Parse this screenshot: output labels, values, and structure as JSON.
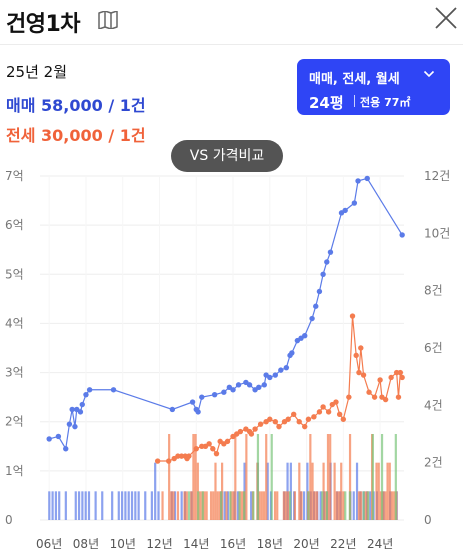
{
  "header": {
    "title": "건영1차",
    "icons": {
      "map": "map-book-icon",
      "close": "close-icon"
    }
  },
  "summary": {
    "date": "25년 2월",
    "sale": "매매 58,000 / 1건",
    "rent": "전세 30,000 / 1건"
  },
  "area_select": {
    "types": "매매, 전세, 월세",
    "pyeong": "24평",
    "exclusive": "전용 77㎡"
  },
  "compare_button": "VS 가격비교",
  "colors": {
    "sale": "#5b7be8",
    "rent": "#f47c4f",
    "monthly": "#7bc47b",
    "accent": "#2f45f5"
  },
  "chart_data": {
    "type": "line",
    "x_unit": "year",
    "xlim": [
      2005.5,
      2025.3
    ],
    "x_ticks": [
      {
        "value": 2006,
        "label": "06년"
      },
      {
        "value": 2008,
        "label": "08년"
      },
      {
        "value": 2010,
        "label": "10년"
      },
      {
        "value": 2012,
        "label": "12년"
      },
      {
        "value": 2014,
        "label": "14년"
      },
      {
        "value": 2016,
        "label": "16년"
      },
      {
        "value": 2018,
        "label": "18년"
      },
      {
        "value": 2020,
        "label": "20년"
      },
      {
        "value": 2022,
        "label": "22년"
      },
      {
        "value": 2024,
        "label": "24년"
      }
    ],
    "y_left": {
      "lim": [
        0,
        7
      ],
      "ticks": [
        {
          "value": 0,
          "label": "0"
        },
        {
          "value": 1,
          "label": "1억"
        },
        {
          "value": 2,
          "label": "2억"
        },
        {
          "value": 3,
          "label": "3억"
        },
        {
          "value": 4,
          "label": "4억"
        },
        {
          "value": 5,
          "label": "5억"
        },
        {
          "value": 6,
          "label": "6억"
        },
        {
          "value": 7,
          "label": "7억"
        }
      ]
    },
    "y_right": {
      "lim": [
        0,
        12
      ],
      "ticks": [
        {
          "value": 0,
          "label": "0"
        },
        {
          "value": 2,
          "label": "2건"
        },
        {
          "value": 4,
          "label": "4건"
        },
        {
          "value": 6,
          "label": "6건"
        },
        {
          "value": 8,
          "label": "8건"
        },
        {
          "value": 10,
          "label": "10건"
        },
        {
          "value": 12,
          "label": "12건"
        }
      ]
    },
    "grid": "horizontal",
    "series": [
      {
        "kind": "sale",
        "points": [
          [
            2006.0,
            1.65
          ],
          [
            2006.5,
            1.7
          ],
          [
            2006.9,
            1.45
          ],
          [
            2007.1,
            1.95
          ],
          [
            2007.25,
            2.25
          ],
          [
            2007.4,
            1.9
          ],
          [
            2007.5,
            2.25
          ],
          [
            2007.7,
            2.2
          ],
          [
            2007.8,
            2.35
          ],
          [
            2008.0,
            2.55
          ],
          [
            2008.2,
            2.65
          ],
          [
            2009.5,
            2.65
          ],
          [
            2012.7,
            2.25
          ],
          [
            2013.8,
            2.4
          ],
          [
            2014.0,
            2.25
          ],
          [
            2014.1,
            2.2
          ],
          [
            2014.3,
            2.5
          ],
          [
            2015.0,
            2.55
          ],
          [
            2015.5,
            2.6
          ],
          [
            2015.8,
            2.7
          ],
          [
            2016.0,
            2.65
          ],
          [
            2016.3,
            2.75
          ],
          [
            2016.7,
            2.8
          ],
          [
            2016.9,
            2.75
          ],
          [
            2017.2,
            2.65
          ],
          [
            2017.4,
            2.7
          ],
          [
            2017.7,
            2.75
          ],
          [
            2017.8,
            2.95
          ],
          [
            2018.0,
            2.9
          ],
          [
            2018.3,
            2.95
          ],
          [
            2018.6,
            3.05
          ],
          [
            2018.9,
            3.1
          ],
          [
            2019.1,
            3.35
          ],
          [
            2019.2,
            3.4
          ],
          [
            2019.5,
            3.65
          ],
          [
            2019.7,
            3.7
          ],
          [
            2019.9,
            3.75
          ],
          [
            2020.3,
            4.1
          ],
          [
            2020.5,
            4.35
          ],
          [
            2020.7,
            4.65
          ],
          [
            2020.9,
            5.0
          ],
          [
            2021.1,
            5.25
          ],
          [
            2021.3,
            5.45
          ],
          [
            2021.9,
            6.25
          ],
          [
            2022.1,
            6.3
          ],
          [
            2022.6,
            6.45
          ],
          [
            2022.8,
            6.9
          ],
          [
            2023.3,
            6.95
          ],
          [
            2025.2,
            5.8
          ]
        ]
      },
      {
        "kind": "rent",
        "points": [
          [
            2011.9,
            1.2
          ],
          [
            2012.5,
            1.2
          ],
          [
            2012.8,
            1.25
          ],
          [
            2013.0,
            1.3
          ],
          [
            2013.2,
            1.3
          ],
          [
            2013.4,
            1.3
          ],
          [
            2013.5,
            1.25
          ],
          [
            2013.6,
            1.3
          ],
          [
            2014.0,
            1.45
          ],
          [
            2014.3,
            1.5
          ],
          [
            2014.5,
            1.5
          ],
          [
            2014.7,
            1.55
          ],
          [
            2014.9,
            1.45
          ],
          [
            2015.1,
            1.35
          ],
          [
            2015.3,
            1.6
          ],
          [
            2015.5,
            1.55
          ],
          [
            2015.7,
            1.6
          ],
          [
            2016.0,
            1.7
          ],
          [
            2016.2,
            1.75
          ],
          [
            2016.4,
            1.8
          ],
          [
            2016.7,
            1.85
          ],
          [
            2016.9,
            1.8
          ],
          [
            2017.0,
            1.75
          ],
          [
            2017.2,
            1.85
          ],
          [
            2017.5,
            1.95
          ],
          [
            2017.8,
            2.0
          ],
          [
            2018.0,
            2.05
          ],
          [
            2018.3,
            2.0
          ],
          [
            2018.5,
            1.9
          ],
          [
            2018.8,
            2.0
          ],
          [
            2019.0,
            2.05
          ],
          [
            2019.3,
            2.15
          ],
          [
            2019.6,
            2.0
          ],
          [
            2019.9,
            1.9
          ],
          [
            2020.1,
            2.05
          ],
          [
            2020.4,
            2.1
          ],
          [
            2020.7,
            2.2
          ],
          [
            2020.9,
            2.3
          ],
          [
            2021.2,
            2.2
          ],
          [
            2021.4,
            2.35
          ],
          [
            2021.6,
            2.4
          ],
          [
            2021.8,
            2.15
          ],
          [
            2022.0,
            2.05
          ],
          [
            2022.3,
            2.5
          ],
          [
            2022.5,
            4.15
          ],
          [
            2022.7,
            3.35
          ],
          [
            2022.85,
            3.0
          ],
          [
            2022.95,
            3.5
          ],
          [
            2023.1,
            2.95
          ],
          [
            2023.4,
            2.6
          ],
          [
            2023.7,
            2.5
          ],
          [
            2024.0,
            2.85
          ],
          [
            2024.1,
            2.5
          ],
          [
            2024.3,
            2.45
          ],
          [
            2024.6,
            2.9
          ],
          [
            2024.9,
            3.0
          ],
          [
            2025.0,
            2.5
          ],
          [
            2025.1,
            3.0
          ],
          [
            2025.2,
            2.9
          ]
        ]
      }
    ]
  }
}
